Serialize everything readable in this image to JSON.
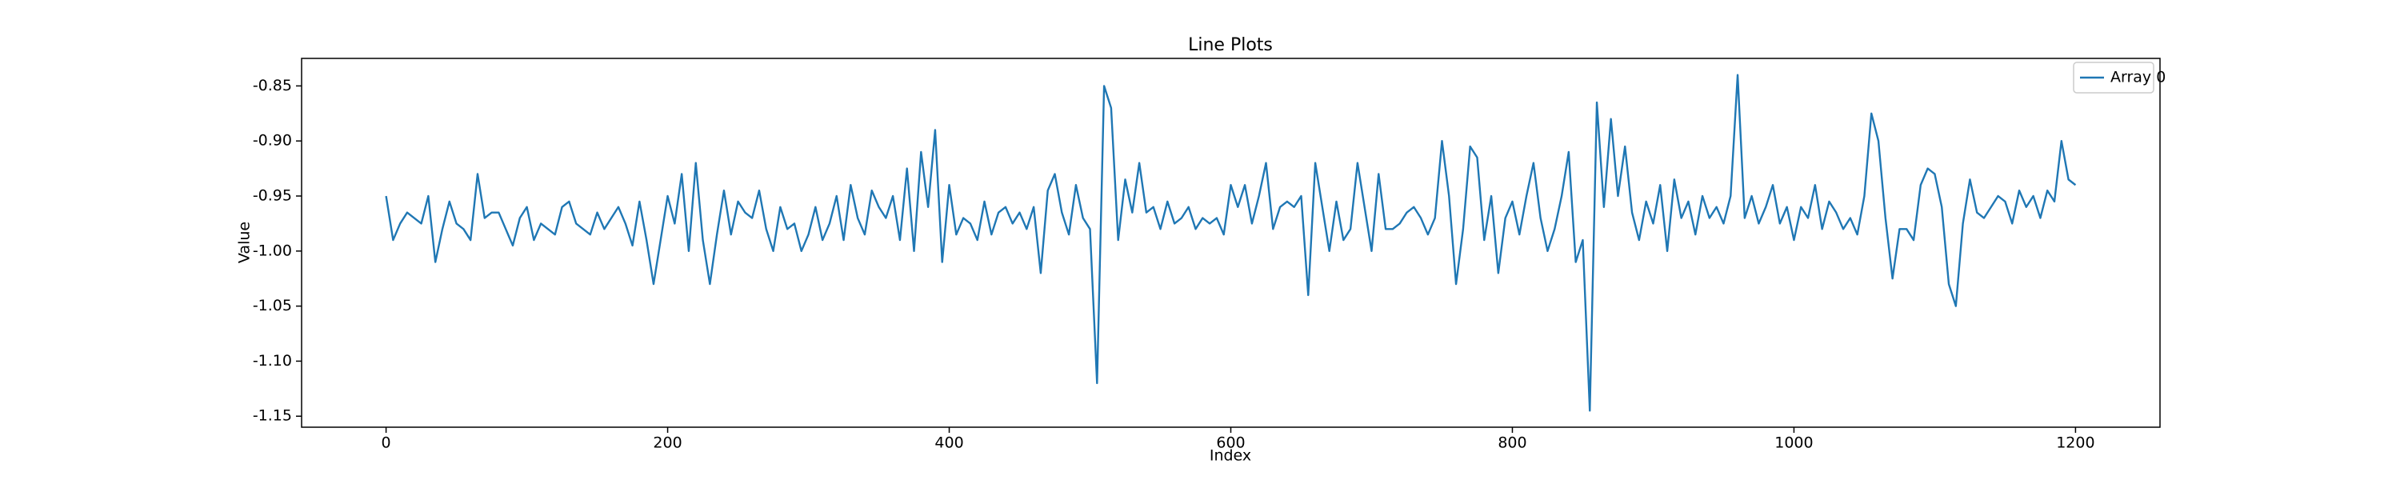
{
  "chart_data": {
    "type": "line",
    "title": "Line Plots",
    "xlabel": "Index",
    "ylabel": "Value",
    "x": [
      0,
      5,
      10,
      15,
      20,
      25,
      30,
      35,
      40,
      45,
      50,
      55,
      60,
      65,
      70,
      75,
      80,
      85,
      90,
      95,
      100,
      105,
      110,
      115,
      120,
      125,
      130,
      135,
      140,
      145,
      150,
      155,
      160,
      165,
      170,
      175,
      180,
      185,
      190,
      195,
      200,
      205,
      210,
      215,
      220,
      225,
      230,
      235,
      240,
      245,
      250,
      255,
      260,
      265,
      270,
      275,
      280,
      285,
      290,
      295,
      300,
      305,
      310,
      315,
      320,
      325,
      330,
      335,
      340,
      345,
      350,
      355,
      360,
      365,
      370,
      375,
      380,
      385,
      390,
      395,
      400,
      405,
      410,
      415,
      420,
      425,
      430,
      435,
      440,
      445,
      450,
      455,
      460,
      465,
      470,
      475,
      480,
      485,
      490,
      495,
      500,
      505,
      510,
      515,
      520,
      525,
      530,
      535,
      540,
      545,
      550,
      555,
      560,
      565,
      570,
      575,
      580,
      585,
      590,
      595,
      600,
      605,
      610,
      615,
      620,
      625,
      630,
      635,
      640,
      645,
      650,
      655,
      660,
      665,
      670,
      675,
      680,
      685,
      690,
      695,
      700,
      705,
      710,
      715,
      720,
      725,
      730,
      735,
      740,
      745,
      750,
      755,
      760,
      765,
      770,
      775,
      780,
      785,
      790,
      795,
      800,
      805,
      810,
      815,
      820,
      825,
      830,
      835,
      840,
      845,
      850,
      855,
      860,
      865,
      870,
      875,
      880,
      885,
      890,
      895,
      900,
      905,
      910,
      915,
      920,
      925,
      930,
      935,
      940,
      945,
      950,
      955,
      960,
      965,
      970,
      975,
      980,
      985,
      990,
      995,
      1000,
      1005,
      1010,
      1015,
      1020,
      1025,
      1030,
      1035,
      1040,
      1045,
      1050,
      1055,
      1060,
      1065,
      1070,
      1075,
      1080,
      1085,
      1090,
      1095,
      1100,
      1105,
      1110,
      1115,
      1120,
      1125,
      1130,
      1135,
      1140,
      1145,
      1150,
      1155,
      1160,
      1165,
      1170,
      1175,
      1180,
      1185,
      1190,
      1195,
      1200
    ],
    "series": [
      {
        "name": "Array 0",
        "color": "#1f77b4",
        "values": [
          -0.95,
          -0.99,
          -0.975,
          -0.965,
          -0.97,
          -0.975,
          -0.95,
          -1.01,
          -0.98,
          -0.955,
          -0.975,
          -0.98,
          -0.99,
          -0.93,
          -0.97,
          -0.965,
          -0.965,
          -0.98,
          -0.995,
          -0.97,
          -0.96,
          -0.99,
          -0.975,
          -0.98,
          -0.985,
          -0.96,
          -0.955,
          -0.975,
          -0.98,
          -0.985,
          -0.965,
          -0.98,
          -0.97,
          -0.96,
          -0.975,
          -0.995,
          -0.955,
          -0.99,
          -1.03,
          -0.99,
          -0.95,
          -0.975,
          -0.93,
          -1.0,
          -0.92,
          -0.99,
          -1.03,
          -0.985,
          -0.945,
          -0.985,
          -0.955,
          -0.965,
          -0.97,
          -0.945,
          -0.98,
          -1.0,
          -0.96,
          -0.98,
          -0.975,
          -1.0,
          -0.985,
          -0.96,
          -0.99,
          -0.975,
          -0.95,
          -0.99,
          -0.94,
          -0.97,
          -0.985,
          -0.945,
          -0.96,
          -0.97,
          -0.95,
          -0.99,
          -0.925,
          -1.0,
          -0.91,
          -0.96,
          -0.89,
          -1.01,
          -0.94,
          -0.985,
          -0.97,
          -0.975,
          -0.99,
          -0.955,
          -0.985,
          -0.965,
          -0.96,
          -0.975,
          -0.965,
          -0.98,
          -0.96,
          -1.02,
          -0.945,
          -0.93,
          -0.965,
          -0.985,
          -0.94,
          -0.97,
          -0.98,
          -1.12,
          -0.85,
          -0.87,
          -0.99,
          -0.935,
          -0.965,
          -0.92,
          -0.965,
          -0.96,
          -0.98,
          -0.955,
          -0.975,
          -0.97,
          -0.96,
          -0.98,
          -0.97,
          -0.975,
          -0.97,
          -0.985,
          -0.94,
          -0.96,
          -0.94,
          -0.975,
          -0.95,
          -0.92,
          -0.98,
          -0.96,
          -0.955,
          -0.96,
          -0.95,
          -1.04,
          -0.92,
          -0.96,
          -1.0,
          -0.955,
          -0.99,
          -0.98,
          -0.92,
          -0.96,
          -1.0,
          -0.93,
          -0.98,
          -0.98,
          -0.975,
          -0.965,
          -0.96,
          -0.97,
          -0.985,
          -0.97,
          -0.9,
          -0.95,
          -1.03,
          -0.98,
          -0.905,
          -0.915,
          -0.99,
          -0.95,
          -1.02,
          -0.97,
          -0.955,
          -0.985,
          -0.95,
          -0.92,
          -0.97,
          -1.0,
          -0.98,
          -0.95,
          -0.91,
          -1.01,
          -0.99,
          -1.145,
          -0.865,
          -0.96,
          -0.88,
          -0.95,
          -0.905,
          -0.965,
          -0.99,
          -0.955,
          -0.975,
          -0.94,
          -1.0,
          -0.935,
          -0.97,
          -0.955,
          -0.985,
          -0.95,
          -0.97,
          -0.96,
          -0.975,
          -0.95,
          -0.84,
          -0.97,
          -0.95,
          -0.975,
          -0.96,
          -0.94,
          -0.975,
          -0.96,
          -0.99,
          -0.96,
          -0.97,
          -0.94,
          -0.98,
          -0.955,
          -0.965,
          -0.98,
          -0.97,
          -0.985,
          -0.95,
          -0.875,
          -0.9,
          -0.97,
          -1.025,
          -0.98,
          -0.98,
          -0.99,
          -0.94,
          -0.925,
          -0.93,
          -0.96,
          -1.03,
          -1.05,
          -0.975,
          -0.935,
          -0.965,
          -0.97,
          -0.96,
          -0.95,
          -0.955,
          -0.975,
          -0.945,
          -0.96,
          -0.95,
          -0.97,
          -0.945,
          -0.955,
          -0.9,
          -0.935,
          -0.94
        ]
      }
    ],
    "xlim": [
      -60,
      1260
    ],
    "xticks": [
      0,
      200,
      400,
      600,
      800,
      1000,
      1200
    ],
    "ylim": [
      -1.16,
      -0.825
    ],
    "yticks": [
      -1.15,
      {
        "value": -1.1,
        "label": "-1.10"
      },
      -1.05,
      {
        "value": -1.0,
        "label": "-1.00"
      },
      -0.95,
      {
        "value": -0.9,
        "label": "-0.90"
      },
      -0.85
    ],
    "legend": "upper right",
    "grid": false
  }
}
